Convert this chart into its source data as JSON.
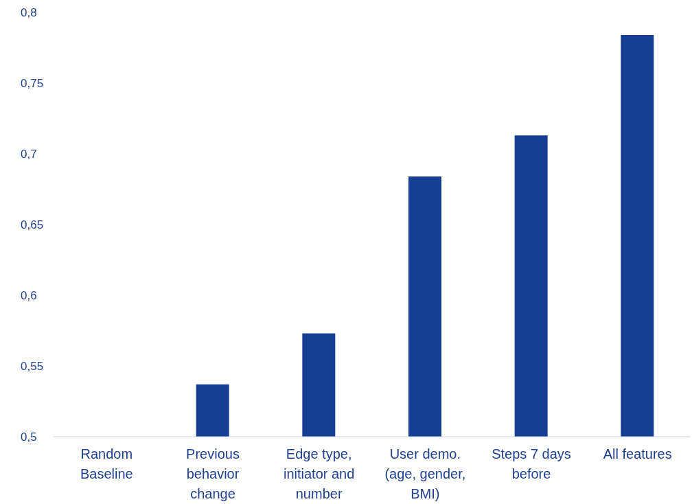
{
  "chart_data": {
    "type": "bar",
    "categories": [
      "Random Baseline",
      "Previous behavior change",
      "Edge type, initiator and number",
      "User demo. (age, gender, BMI)",
      "Steps 7 days before",
      "All features"
    ],
    "values": [
      0.5,
      0.537,
      0.573,
      0.684,
      0.713,
      0.784
    ],
    "color": "#143f93",
    "ylim": [
      0.5,
      0.8
    ],
    "yticks": [
      {
        "value": 0.5,
        "label": "0,5"
      },
      {
        "value": 0.55,
        "label": "0,55"
      },
      {
        "value": 0.6,
        "label": "0,6"
      },
      {
        "value": 0.65,
        "label": "0,65"
      },
      {
        "value": 0.7,
        "label": "0,7"
      },
      {
        "value": 0.75,
        "label": "0,75"
      },
      {
        "value": 0.8,
        "label": "0,8"
      }
    ],
    "grid": false,
    "legend": false
  }
}
